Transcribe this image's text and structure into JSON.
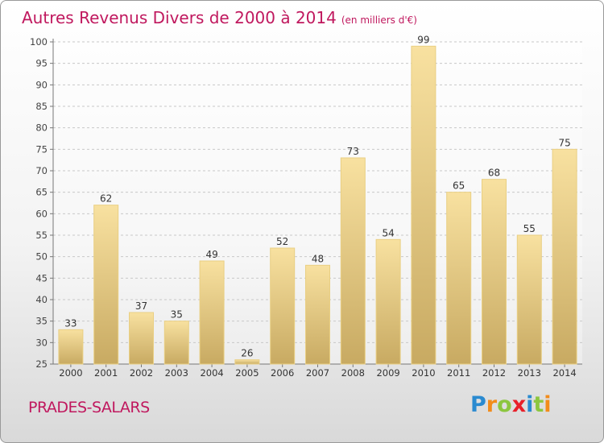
{
  "title": "Autres Revenus Divers de 2000 à 2014",
  "title_unit": "(en milliers d'€)",
  "commune": "PRADES-SALARS",
  "logo": {
    "letters": [
      "P",
      "r",
      "o",
      "x",
      "i",
      "t",
      "i"
    ],
    "colors": [
      "#2a8ad0",
      "#f28c1a",
      "#8cc63f",
      "#e8202a",
      "#2a8ad0",
      "#8cc63f",
      "#f28c1a"
    ]
  },
  "chart_data": {
    "type": "bar",
    "categories": [
      "2000",
      "2001",
      "2002",
      "2003",
      "2004",
      "2005",
      "2006",
      "2007",
      "2008",
      "2009",
      "2010",
      "2011",
      "2012",
      "2013",
      "2014"
    ],
    "values": [
      33,
      62,
      37,
      35,
      49,
      26,
      52,
      48,
      73,
      54,
      99,
      65,
      68,
      55,
      75
    ],
    "ylim": [
      25,
      100
    ],
    "yticks": [
      25,
      30,
      35,
      40,
      45,
      50,
      55,
      60,
      65,
      70,
      75,
      80,
      85,
      90,
      95,
      100
    ],
    "grid": true,
    "colors": {
      "bar_top": "#f8e1a0",
      "bar_bottom": "#c8aa62",
      "bar_edge": "#e9cf83"
    }
  }
}
